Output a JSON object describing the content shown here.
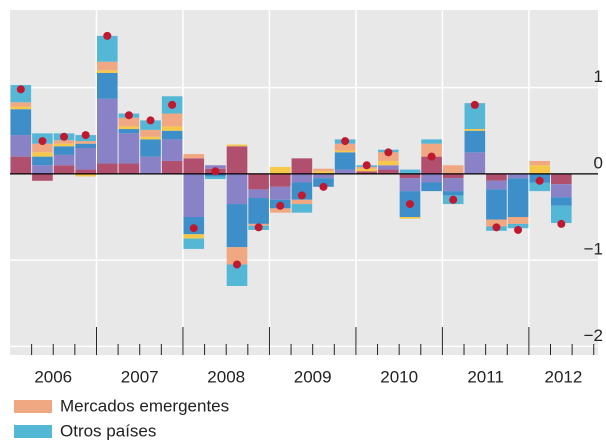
{
  "chart_data": {
    "type": "stacked-bar",
    "categories": [
      null,
      null,
      null,
      null,
      null,
      null,
      null,
      null,
      null,
      null,
      null,
      null,
      null,
      null,
      null,
      null,
      null,
      null,
      null,
      null,
      null,
      null,
      null,
      null,
      null,
      null
    ],
    "year_labels": [
      "2006",
      "2007",
      "2008",
      "2009",
      "2010",
      "2011",
      "2012"
    ],
    "series": [
      {
        "color": "#b0506e",
        "values": [
          0.2,
          -0.08,
          0.1,
          0.05,
          0.12,
          0.12,
          0,
          0.15,
          0.18,
          0.06,
          0.32,
          -0.18,
          -0.15,
          0.18,
          0,
          0,
          0.03,
          0.05,
          -0.05,
          0.2,
          -0.05,
          0,
          -0.08,
          0,
          0,
          -0.12
        ]
      },
      {
        "color": "#8a82c6",
        "values": [
          0.25,
          0.1,
          0.12,
          0.25,
          0.75,
          0.35,
          0.2,
          0.25,
          -0.5,
          0.04,
          -0.35,
          -0.1,
          -0.15,
          -0.1,
          -0.05,
          0.05,
          0,
          0.05,
          -0.15,
          -0.1,
          -0.15,
          0.25,
          -0.1,
          -0.05,
          0,
          -0.15
        ]
      },
      {
        "color": "#3e8ec9",
        "values": [
          0.3,
          0.1,
          0.1,
          0.05,
          0.3,
          0.05,
          0.2,
          0.1,
          -0.2,
          -0.03,
          -0.5,
          -0.3,
          -0.1,
          -0.2,
          -0.1,
          0.2,
          0,
          0,
          -0.3,
          -0.1,
          -0.05,
          0.25,
          -0.35,
          -0.45,
          -0.1,
          -0.1
        ]
      },
      {
        "color": "#f5c84a",
        "values": [
          0.03,
          0.05,
          0.03,
          -0.03,
          0.03,
          0.03,
          0.03,
          0.05,
          -0.05,
          0,
          0.02,
          0,
          0.08,
          0,
          0.03,
          0.02,
          0.03,
          0.05,
          -0.02,
          0,
          0,
          0.02,
          0,
          0,
          0.1,
          0
        ]
      },
      {
        "name": "Mercados emergentes",
        "color": "#f0a882",
        "values": [
          0.05,
          0.1,
          0.04,
          0.03,
          0.1,
          0.1,
          0.08,
          0.15,
          0.05,
          0,
          -0.2,
          -0.02,
          -0.05,
          -0.05,
          0.03,
          0.08,
          0.02,
          0.1,
          0,
          0.15,
          0.1,
          0,
          -0.08,
          -0.08,
          0.05,
          0
        ]
      },
      {
        "name": "Otros países",
        "color": "#55b7d6",
        "values": [
          0.2,
          0.12,
          0.08,
          0.07,
          0.3,
          0.05,
          0.11,
          0.2,
          -0.12,
          -0.03,
          -0.25,
          -0.05,
          0,
          -0.1,
          0,
          0.05,
          0.02,
          0.03,
          0.05,
          0.05,
          -0.1,
          0.3,
          -0.05,
          -0.05,
          -0.1,
          -0.2
        ]
      }
    ],
    "total": {
      "color": "#c0182f",
      "values": [
        0.98,
        0.38,
        0.43,
        0.45,
        1.6,
        0.68,
        0.62,
        0.8,
        -0.63,
        0.03,
        -1.05,
        -0.62,
        -0.37,
        -0.25,
        -0.15,
        0.38,
        0.1,
        0.25,
        -0.35,
        0.2,
        -0.3,
        0.8,
        -0.62,
        -0.65,
        -0.08,
        -0.58
      ]
    },
    "ylim": [
      -2.1,
      1.9
    ],
    "yticks": [
      {
        "value": 1,
        "label": "1"
      },
      0,
      {
        "value": -1,
        "label": "−1"
      },
      {
        "value": -2,
        "label": "−2"
      }
    ],
    "grid": true
  }
}
